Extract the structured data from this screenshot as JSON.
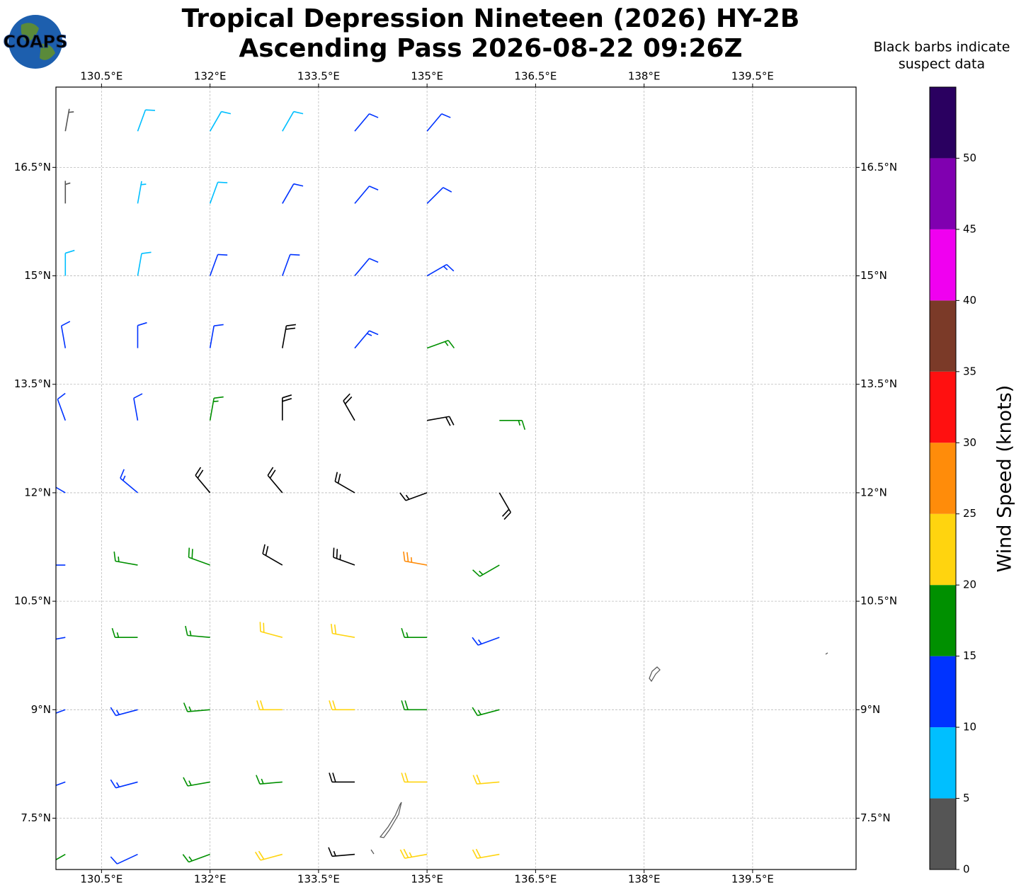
{
  "logo": "COAPS",
  "chart_data": {
    "type": "barbs",
    "title": [
      "Tropical Depression Nineteen (2026) HY-2B",
      "Ascending Pass 2026-08-22 09:26Z"
    ],
    "note": [
      "Black barbs indicate",
      "suspect data"
    ],
    "xlim": [
      129.87,
      140.93
    ],
    "ylim": [
      6.79,
      17.61
    ],
    "xticks": [
      {
        "value": 130.5,
        "label": "130.5°E"
      },
      {
        "value": 132,
        "label": "132°E"
      },
      {
        "value": 133.5,
        "label": "133.5°E"
      },
      {
        "value": 135,
        "label": "135°E"
      },
      {
        "value": 136.5,
        "label": "136.5°E"
      },
      {
        "value": 138,
        "label": "138°E"
      },
      {
        "value": 139.5,
        "label": "139.5°E"
      }
    ],
    "yticks": [
      {
        "value": 16.5,
        "label": "16.5°N"
      },
      {
        "value": 15,
        "label": "15°N"
      },
      {
        "value": 13.5,
        "label": "13.5°N"
      },
      {
        "value": 12,
        "label": "12°N"
      },
      {
        "value": 10.5,
        "label": "10.5°N"
      },
      {
        "value": 9,
        "label": "9°N"
      },
      {
        "value": 7.5,
        "label": "7.5°N"
      }
    ],
    "grid": true,
    "suspect_color": "#000000",
    "colorbar": {
      "label": "Wind Speed (knots)",
      "bounds": [
        0,
        5,
        10,
        15,
        20,
        25,
        30,
        35,
        40,
        45,
        50,
        55
      ],
      "colors": [
        "#555555",
        "#00bfff",
        "#0033ff",
        "#009000",
        "#ffd40f",
        "#ff8c0a",
        "#ff1010",
        "#7b3a28",
        "#f000f0",
        "#8000b0",
        "#2a0060"
      ],
      "ticks": [
        0,
        5,
        10,
        15,
        20,
        25,
        30,
        35,
        40,
        45,
        50
      ]
    },
    "barbs": [
      {
        "lon": 130,
        "lat": 17,
        "speed": 4,
        "dir": 10,
        "suspect": false
      },
      {
        "lon": 131,
        "lat": 17,
        "speed": 8,
        "dir": 20,
        "suspect": false
      },
      {
        "lon": 132,
        "lat": 17,
        "speed": 8,
        "dir": 30,
        "suspect": false
      },
      {
        "lon": 133,
        "lat": 17,
        "speed": 9,
        "dir": 30,
        "suspect": false
      },
      {
        "lon": 134,
        "lat": 17,
        "speed": 12,
        "dir": 40,
        "suspect": false
      },
      {
        "lon": 135,
        "lat": 17,
        "speed": 12,
        "dir": 40,
        "suspect": false
      },
      {
        "lon": 130,
        "lat": 16,
        "speed": 4,
        "dir": 0,
        "suspect": false
      },
      {
        "lon": 131,
        "lat": 16,
        "speed": 7,
        "dir": 10,
        "suspect": false
      },
      {
        "lon": 132,
        "lat": 16,
        "speed": 9,
        "dir": 20,
        "suspect": false
      },
      {
        "lon": 133,
        "lat": 16,
        "speed": 10,
        "dir": 30,
        "suspect": false
      },
      {
        "lon": 134,
        "lat": 16,
        "speed": 12,
        "dir": 40,
        "suspect": false
      },
      {
        "lon": 135,
        "lat": 16,
        "speed": 12,
        "dir": 45,
        "suspect": false
      },
      {
        "lon": 130,
        "lat": 15,
        "speed": 8,
        "dir": 0,
        "suspect": false
      },
      {
        "lon": 131,
        "lat": 15,
        "speed": 9,
        "dir": 10,
        "suspect": false
      },
      {
        "lon": 132,
        "lat": 15,
        "speed": 11,
        "dir": 20,
        "suspect": false
      },
      {
        "lon": 133,
        "lat": 15,
        "speed": 12,
        "dir": 20,
        "suspect": false
      },
      {
        "lon": 134,
        "lat": 15,
        "speed": 12,
        "dir": 40,
        "suspect": false
      },
      {
        "lon": 135,
        "lat": 15,
        "speed": 13,
        "dir": 60,
        "suspect": false
      },
      {
        "lon": 130,
        "lat": 14,
        "speed": 11,
        "dir": 350,
        "suspect": false
      },
      {
        "lon": 131,
        "lat": 14,
        "speed": 12,
        "dir": 0,
        "suspect": false
      },
      {
        "lon": 132,
        "lat": 14,
        "speed": 12,
        "dir": 10,
        "suspect": false
      },
      {
        "lon": 133,
        "lat": 14,
        "speed": 18,
        "dir": 10,
        "suspect": true
      },
      {
        "lon": 134,
        "lat": 14,
        "speed": 13,
        "dir": 40,
        "suspect": false
      },
      {
        "lon": 135,
        "lat": 14,
        "speed": 17,
        "dir": 70,
        "suspect": false
      },
      {
        "lon": 130,
        "lat": 13,
        "speed": 12,
        "dir": 340,
        "suspect": false
      },
      {
        "lon": 131,
        "lat": 13,
        "speed": 12,
        "dir": 350,
        "suspect": false
      },
      {
        "lon": 132,
        "lat": 13,
        "speed": 17,
        "dir": 10,
        "suspect": false
      },
      {
        "lon": 133,
        "lat": 13,
        "speed": 18,
        "dir": 0,
        "suspect": true
      },
      {
        "lon": 134,
        "lat": 13,
        "speed": 18,
        "dir": 330,
        "suspect": true
      },
      {
        "lon": 135,
        "lat": 13,
        "speed": 18,
        "dir": 80,
        "suspect": true
      },
      {
        "lon": 136,
        "lat": 13,
        "speed": 17,
        "dir": 90,
        "suspect": false
      },
      {
        "lon": 130,
        "lat": 12,
        "speed": 12,
        "dir": 300,
        "suspect": false
      },
      {
        "lon": 131,
        "lat": 12,
        "speed": 14,
        "dir": 310,
        "suspect": false
      },
      {
        "lon": 132,
        "lat": 12,
        "speed": 18,
        "dir": 320,
        "suspect": true
      },
      {
        "lon": 133,
        "lat": 12,
        "speed": 20,
        "dir": 320,
        "suspect": true
      },
      {
        "lon": 134,
        "lat": 12,
        "speed": 20,
        "dir": 300,
        "suspect": true
      },
      {
        "lon": 135,
        "lat": 12,
        "speed": 17,
        "dir": 250,
        "suspect": true
      },
      {
        "lon": 136,
        "lat": 12,
        "speed": 20,
        "dir": 150,
        "suspect": true
      },
      {
        "lon": 130,
        "lat": 11,
        "speed": 12,
        "dir": 270,
        "suspect": false
      },
      {
        "lon": 131,
        "lat": 11,
        "speed": 16,
        "dir": 280,
        "suspect": false
      },
      {
        "lon": 132,
        "lat": 11,
        "speed": 18,
        "dir": 290,
        "suspect": false
      },
      {
        "lon": 133,
        "lat": 11,
        "speed": 22,
        "dir": 300,
        "suspect": true
      },
      {
        "lon": 134,
        "lat": 11,
        "speed": 25,
        "dir": 290,
        "suspect": true
      },
      {
        "lon": 135,
        "lat": 11,
        "speed": 27,
        "dir": 280,
        "suspect": false
      },
      {
        "lon": 136,
        "lat": 11,
        "speed": 17,
        "dir": 240,
        "suspect": false
      },
      {
        "lon": 130,
        "lat": 10,
        "speed": 12,
        "dir": 260,
        "suspect": false
      },
      {
        "lon": 131,
        "lat": 10,
        "speed": 16,
        "dir": 270,
        "suspect": false
      },
      {
        "lon": 132,
        "lat": 10,
        "speed": 17,
        "dir": 275,
        "suspect": false
      },
      {
        "lon": 133,
        "lat": 10,
        "speed": 22,
        "dir": 285,
        "suspect": false
      },
      {
        "lon": 134,
        "lat": 10,
        "speed": 21,
        "dir": 280,
        "suspect": false
      },
      {
        "lon": 135,
        "lat": 10,
        "speed": 17,
        "dir": 270,
        "suspect": false
      },
      {
        "lon": 136,
        "lat": 10,
        "speed": 13,
        "dir": 250,
        "suspect": false
      },
      {
        "lon": 130,
        "lat": 9,
        "speed": 12,
        "dir": 250,
        "suspect": false
      },
      {
        "lon": 131,
        "lat": 9,
        "speed": 14,
        "dir": 255,
        "suspect": false
      },
      {
        "lon": 132,
        "lat": 9,
        "speed": 16,
        "dir": 265,
        "suspect": false
      },
      {
        "lon": 133,
        "lat": 9,
        "speed": 20,
        "dir": 270,
        "suspect": false
      },
      {
        "lon": 134,
        "lat": 9,
        "speed": 21,
        "dir": 270,
        "suspect": false
      },
      {
        "lon": 135,
        "lat": 9,
        "speed": 18,
        "dir": 270,
        "suspect": false
      },
      {
        "lon": 136,
        "lat": 9,
        "speed": 17,
        "dir": 255,
        "suspect": false
      },
      {
        "lon": 130,
        "lat": 8,
        "speed": 12,
        "dir": 250,
        "suspect": false
      },
      {
        "lon": 131,
        "lat": 8,
        "speed": 13,
        "dir": 255,
        "suspect": false
      },
      {
        "lon": 132,
        "lat": 8,
        "speed": 17,
        "dir": 260,
        "suspect": false
      },
      {
        "lon": 133,
        "lat": 8,
        "speed": 17,
        "dir": 265,
        "suspect": false
      },
      {
        "lon": 134,
        "lat": 8,
        "speed": 21,
        "dir": 270,
        "suspect": true
      },
      {
        "lon": 135,
        "lat": 8,
        "speed": 22,
        "dir": 270,
        "suspect": false
      },
      {
        "lon": 136,
        "lat": 8,
        "speed": 21,
        "dir": 265,
        "suspect": false
      },
      {
        "lon": 130,
        "lat": 7,
        "speed": 16,
        "dir": 240,
        "suspect": false
      },
      {
        "lon": 131,
        "lat": 7,
        "speed": 12,
        "dir": 245,
        "suspect": false
      },
      {
        "lon": 132,
        "lat": 7,
        "speed": 17,
        "dir": 250,
        "suspect": false
      },
      {
        "lon": 133,
        "lat": 7,
        "speed": 22,
        "dir": 255,
        "suspect": false
      },
      {
        "lon": 134,
        "lat": 7,
        "speed": 17,
        "dir": 265,
        "suspect": true
      },
      {
        "lon": 135,
        "lat": 7,
        "speed": 23,
        "dir": 260,
        "suspect": false
      },
      {
        "lon": 136,
        "lat": 7,
        "speed": 22,
        "dir": 260,
        "suspect": false
      }
    ]
  }
}
